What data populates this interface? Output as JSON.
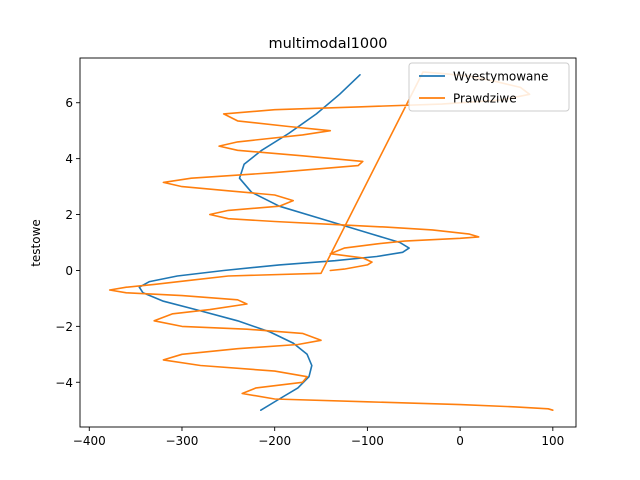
{
  "chart_data": {
    "type": "line",
    "title": "multimodal1000",
    "xlabel": "",
    "ylabel": "testowe",
    "xlim": [
      -410,
      125
    ],
    "ylim": [
      -5.6,
      7.6
    ],
    "xticks": [
      -400,
      -300,
      -200,
      -100,
      0,
      100
    ],
    "yticks": [
      -4,
      -2,
      0,
      2,
      4,
      6
    ],
    "xtick_labels": [
      "−400",
      "−300",
      "−200",
      "−100",
      "0",
      "100"
    ],
    "ytick_labels": [
      "−4",
      "−2",
      "0",
      "2",
      "4",
      "6"
    ],
    "grid": false,
    "legend_position": "top-right",
    "series": [
      {
        "name": "Wyestymowane",
        "color": "#1f77b4",
        "x": [
          -215,
          -195,
          -175,
          -163,
          -160,
          -165,
          -180,
          -205,
          -240,
          -285,
          -320,
          -342,
          -346,
          -335,
          -305,
          -255,
          -195,
          -135,
          -90,
          -62,
          -55,
          -65,
          -95,
          -145,
          -195,
          -225,
          -238,
          -233,
          -214,
          -185,
          -155,
          -130,
          -108
        ],
        "y": [
          -5.0,
          -4.6,
          -4.2,
          -3.8,
          -3.4,
          -3.0,
          -2.6,
          -2.2,
          -1.8,
          -1.4,
          -1.1,
          -0.8,
          -0.6,
          -0.4,
          -0.2,
          0.0,
          0.2,
          0.35,
          0.5,
          0.65,
          0.8,
          1.0,
          1.3,
          1.8,
          2.3,
          2.8,
          3.3,
          3.8,
          4.3,
          4.9,
          5.6,
          6.3,
          7.0
        ]
      },
      {
        "name": "Prawdziwe",
        "color": "#ff7f0e",
        "x": [
          -140,
          -125,
          -100,
          -95,
          -105,
          -140,
          -125,
          -90,
          -60,
          0,
          20,
          10,
          -30,
          -80,
          -140,
          -200,
          -250,
          -270,
          -250,
          -195,
          -180,
          -200,
          -250,
          -300,
          -320,
          -290,
          -200,
          -110,
          -105,
          -170,
          -240,
          -260,
          -240,
          -170,
          -140,
          -185,
          -240,
          -255,
          -200,
          -110,
          -20,
          45,
          75,
          65,
          40,
          10,
          -20,
          -40,
          -150,
          -250,
          -290,
          -330,
          -360,
          -378,
          -360,
          -300,
          -240,
          -230,
          -270,
          -310,
          -330,
          -300,
          -230,
          -170,
          -150,
          -175,
          -240,
          -300,
          -320,
          -280,
          -200,
          -165,
          -170,
          -220,
          -235,
          -200,
          -100,
          0,
          60,
          95,
          100
        ],
        "y": [
          0.0,
          0.05,
          0.2,
          0.3,
          0.45,
          0.6,
          0.8,
          0.95,
          1.05,
          1.15,
          1.2,
          1.3,
          1.45,
          1.55,
          1.65,
          1.75,
          1.85,
          2.0,
          2.15,
          2.3,
          2.5,
          2.7,
          2.85,
          3.0,
          3.15,
          3.3,
          3.5,
          3.75,
          3.9,
          4.1,
          4.3,
          4.45,
          4.6,
          4.85,
          5.0,
          5.15,
          5.35,
          5.6,
          5.75,
          5.85,
          5.95,
          6.1,
          6.3,
          6.55,
          6.75,
          6.95,
          7.05,
          7.1,
          -0.1,
          -0.2,
          -0.35,
          -0.5,
          -0.6,
          -0.7,
          -0.8,
          -0.9,
          -1.05,
          -1.2,
          -1.4,
          -1.55,
          -1.8,
          -2.0,
          -2.1,
          -2.25,
          -2.5,
          -2.65,
          -2.8,
          -3.0,
          -3.2,
          -3.4,
          -3.6,
          -3.8,
          -4.0,
          -4.2,
          -4.4,
          -4.6,
          -4.7,
          -4.8,
          -4.88,
          -4.95,
          -5.0
        ]
      }
    ]
  }
}
